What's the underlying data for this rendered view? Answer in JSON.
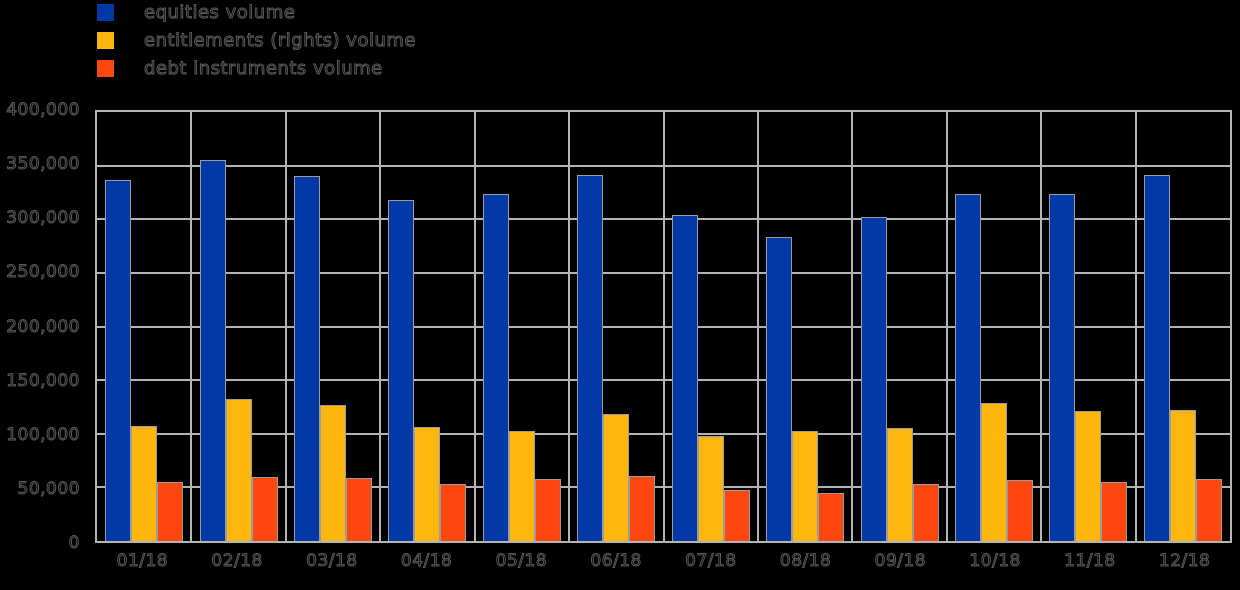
{
  "background_color": "#000000",
  "text_outline_color": "#5a5a5a",
  "grid_color": "#b4b4b4",
  "bar_stroke_color": "#9c9c9c",
  "chart_data": {
    "type": "bar",
    "title": "",
    "categories": [
      "01/18",
      "02/18",
      "03/18",
      "04/18",
      "05/18",
      "06/18",
      "07/18",
      "08/18",
      "09/18",
      "10/18",
      "11/18",
      "12/18"
    ],
    "series": [
      {
        "name": "equities volume",
        "color": "#0339A6",
        "values": [
          337000,
          355000,
          340000,
          318000,
          324000,
          341000,
          304000,
          283000,
          302000,
          324000,
          324000,
          341000
        ]
      },
      {
        "name": "entitlements (rights) volume",
        "color": "#FFB60D",
        "values": [
          107000,
          132000,
          127000,
          106000,
          103000,
          118000,
          98000,
          103000,
          105000,
          129000,
          121000,
          122000
        ]
      },
      {
        "name": "debt instruments volume",
        "color": "#FF470F",
        "values": [
          55000,
          60000,
          59000,
          53000,
          58000,
          61000,
          48000,
          45000,
          53000,
          57000,
          55000,
          58000
        ]
      }
    ],
    "xlabel": "",
    "ylabel": "",
    "ylim": [
      0,
      400000
    ],
    "ytick_step": 50000,
    "ytick_labels_top_to_bottom": [
      "400,000",
      "350,000",
      "300,000",
      "250,000",
      "200,000",
      "150,000",
      "100,000",
      "50,000",
      "0"
    ],
    "grid": true,
    "legend_position": "top-left"
  }
}
